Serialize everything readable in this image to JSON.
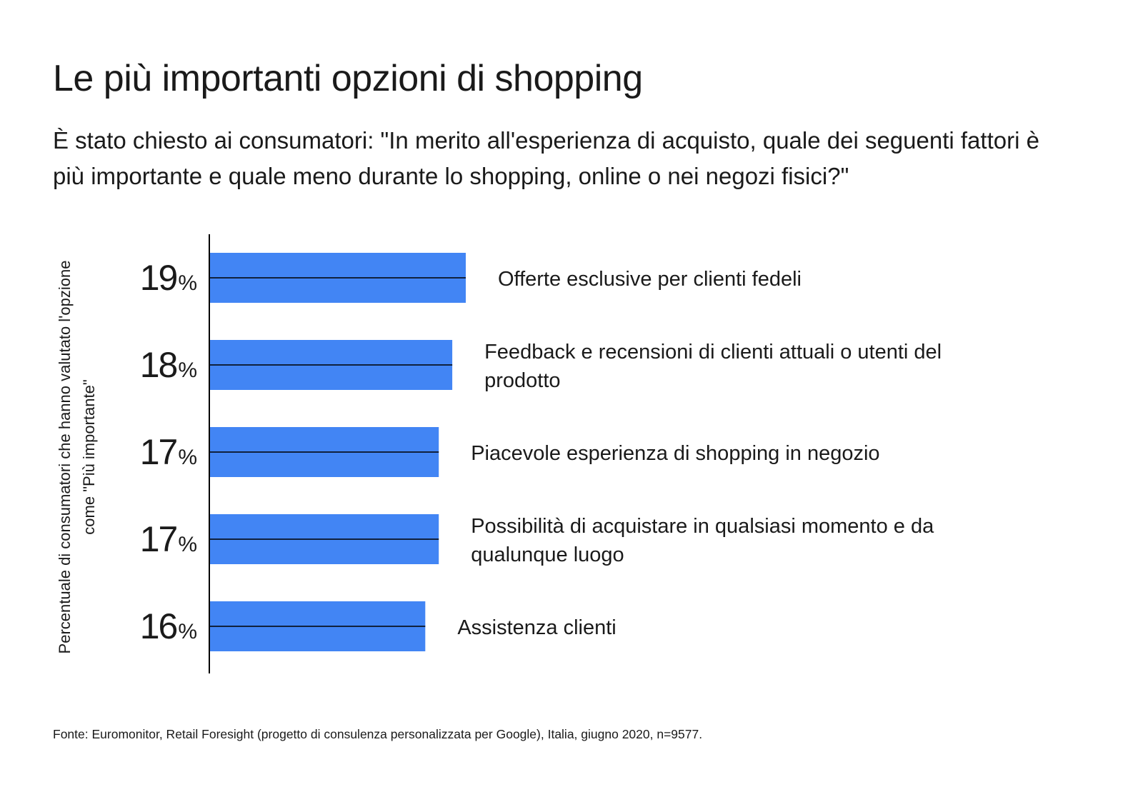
{
  "title": "Le più importanti opzioni di shopping",
  "subtitle": "È stato chiesto ai consumatori: \"In merito all'esperienza di acquisto, quale dei seguenti fattori è più importante e quale meno durante lo shopping, online o nei negozi fisici?\"",
  "source": "Fonte: Euromonitor, Retail Foresight (progetto di consulenza personalizzata per Google), Italia, giugno 2020, n=9577.",
  "colors": {
    "bar": "#4285F4",
    "text": "#1a1a1a",
    "axis": "#000000"
  },
  "chart_data": {
    "type": "bar",
    "orientation": "horizontal",
    "ylabel": "Percentuale di consumatori che hanno valutato l'opzione come \"Più importante\"",
    "xlabel": "",
    "percent_symbol": "%",
    "xlim": [
      0,
      19
    ],
    "grid": false,
    "legend": "none",
    "categories": [
      "Offerte esclusive per clienti fedeli",
      "Feedback e recensioni di clienti attuali o utenti del prodotto",
      "Piacevole esperienza di shopping in negozio",
      "Possibilità di acquistare in qualsiasi momento e da qualunque luogo",
      "Assistenza clienti"
    ],
    "category_lines": [
      [
        "Offerte esclusive per clienti fedeli"
      ],
      [
        "Feedback e recensioni di clienti attuali o utenti del",
        "prodotto"
      ],
      [
        "Piacevole esperienza di shopping in negozio"
      ],
      [
        "Possibilità di acquistare in qualsiasi momento e da",
        "qualunque luogo"
      ],
      [
        "Assistenza clienti"
      ]
    ],
    "values": [
      19,
      18,
      17,
      17,
      16
    ]
  }
}
